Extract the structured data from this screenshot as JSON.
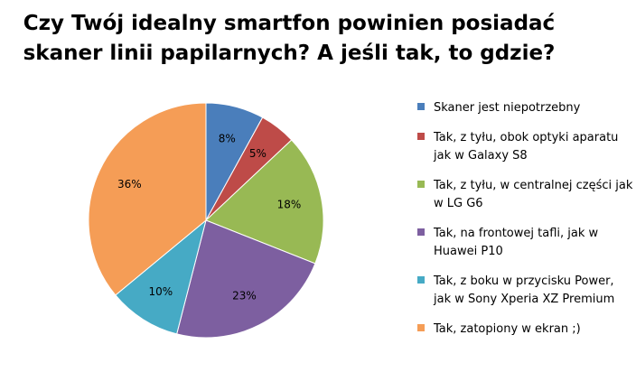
{
  "chart_data": {
    "type": "pie",
    "title": "Czy Twój idealny smartfon powinien posiadać skaner linii papilarnych? A jeśli tak, to gdzie?",
    "title_lines": [
      "Czy Twój idealny smartfon powinien posiadać",
      "skaner linii papilarnych? A jeśli tak, to gdzie?"
    ],
    "slices": [
      {
        "label": "Skaner jest niepotrzebny",
        "label_lines": [
          "Skaner jest niepotrzebny"
        ],
        "value": 8,
        "display": "8%",
        "color": "#4a7ebb"
      },
      {
        "label": "Tak, z tyłu, obok optyki aparatu jak w Galaxy S8",
        "label_lines": [
          "Tak, z tyłu,  obok optyki aparatu",
          "jak w Galaxy S8"
        ],
        "value": 5,
        "display": "5%",
        "color": "#be4b48"
      },
      {
        "label": "Tak, z tyłu, w centralnej części jak w LG G6",
        "label_lines": [
          "Tak, z tyłu,  w centralnej części jak",
          "w LG G6"
        ],
        "value": 18,
        "display": "18%",
        "color": "#98b954"
      },
      {
        "label": "Tak, na frontowej tafli, jak w Huawei P10",
        "label_lines": [
          "Tak, na frontowej tafli, jak w",
          "Huawei P10"
        ],
        "value": 23,
        "display": "23%",
        "color": "#7d5fa0"
      },
      {
        "label": "Tak, z boku w przycisku Power, jak w Sony Xperia XZ Premium",
        "label_lines": [
          "Tak, z boku w przycisku Power,",
          "jak w Sony Xperia XZ Premium"
        ],
        "value": 10,
        "display": "10%",
        "color": "#46aac5"
      },
      {
        "label": "Tak, zatopiony w ekran ;)",
        "label_lines": [
          "Tak, zatopiony w ekran ;)"
        ],
        "value": 36,
        "display": "36%",
        "color": "#f59d56"
      }
    ],
    "legend_position": "right"
  }
}
